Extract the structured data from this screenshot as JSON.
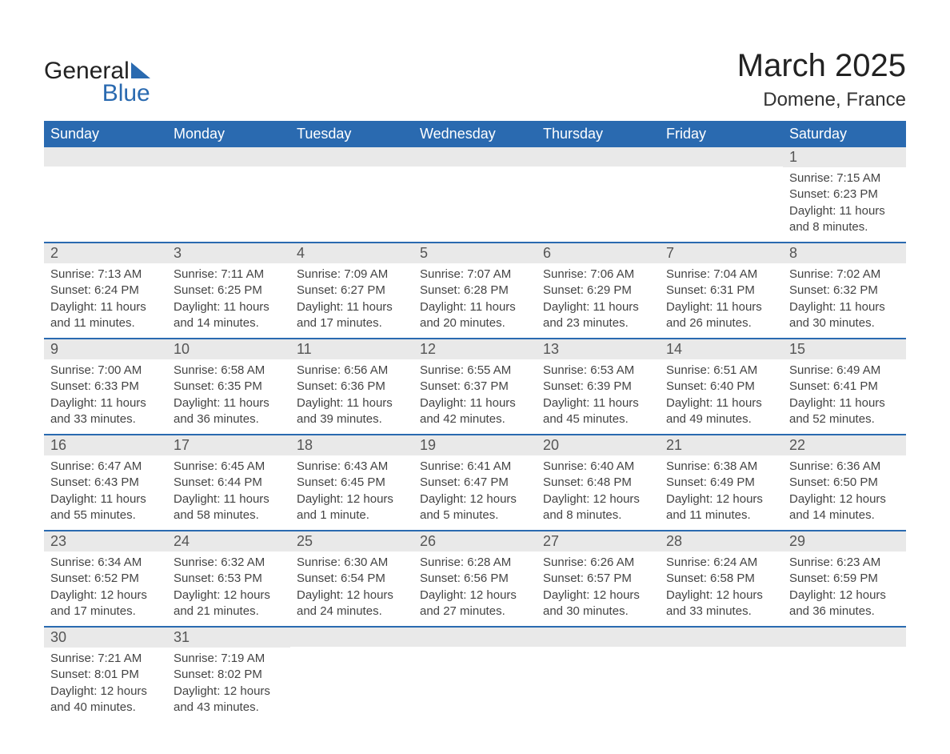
{
  "logo": {
    "general": "General",
    "blue": "Blue"
  },
  "title": "March 2025",
  "subtitle": "Domene, France",
  "colors": {
    "header_bg": "#2a6ab0",
    "header_text": "#ffffff",
    "daynum_bg": "#e9e9e9",
    "row_border": "#2a6ab0",
    "body_text": "#444444",
    "page_bg": "#ffffff"
  },
  "weekdays": [
    "Sunday",
    "Monday",
    "Tuesday",
    "Wednesday",
    "Thursday",
    "Friday",
    "Saturday"
  ],
  "weeks": [
    [
      {
        "day": "",
        "sunrise": "",
        "sunset": "",
        "daylight": ""
      },
      {
        "day": "",
        "sunrise": "",
        "sunset": "",
        "daylight": ""
      },
      {
        "day": "",
        "sunrise": "",
        "sunset": "",
        "daylight": ""
      },
      {
        "day": "",
        "sunrise": "",
        "sunset": "",
        "daylight": ""
      },
      {
        "day": "",
        "sunrise": "",
        "sunset": "",
        "daylight": ""
      },
      {
        "day": "",
        "sunrise": "",
        "sunset": "",
        "daylight": ""
      },
      {
        "day": "1",
        "sunrise": "Sunrise: 7:15 AM",
        "sunset": "Sunset: 6:23 PM",
        "daylight": "Daylight: 11 hours and 8 minutes."
      }
    ],
    [
      {
        "day": "2",
        "sunrise": "Sunrise: 7:13 AM",
        "sunset": "Sunset: 6:24 PM",
        "daylight": "Daylight: 11 hours and 11 minutes."
      },
      {
        "day": "3",
        "sunrise": "Sunrise: 7:11 AM",
        "sunset": "Sunset: 6:25 PM",
        "daylight": "Daylight: 11 hours and 14 minutes."
      },
      {
        "day": "4",
        "sunrise": "Sunrise: 7:09 AM",
        "sunset": "Sunset: 6:27 PM",
        "daylight": "Daylight: 11 hours and 17 minutes."
      },
      {
        "day": "5",
        "sunrise": "Sunrise: 7:07 AM",
        "sunset": "Sunset: 6:28 PM",
        "daylight": "Daylight: 11 hours and 20 minutes."
      },
      {
        "day": "6",
        "sunrise": "Sunrise: 7:06 AM",
        "sunset": "Sunset: 6:29 PM",
        "daylight": "Daylight: 11 hours and 23 minutes."
      },
      {
        "day": "7",
        "sunrise": "Sunrise: 7:04 AM",
        "sunset": "Sunset: 6:31 PM",
        "daylight": "Daylight: 11 hours and 26 minutes."
      },
      {
        "day": "8",
        "sunrise": "Sunrise: 7:02 AM",
        "sunset": "Sunset: 6:32 PM",
        "daylight": "Daylight: 11 hours and 30 minutes."
      }
    ],
    [
      {
        "day": "9",
        "sunrise": "Sunrise: 7:00 AM",
        "sunset": "Sunset: 6:33 PM",
        "daylight": "Daylight: 11 hours and 33 minutes."
      },
      {
        "day": "10",
        "sunrise": "Sunrise: 6:58 AM",
        "sunset": "Sunset: 6:35 PM",
        "daylight": "Daylight: 11 hours and 36 minutes."
      },
      {
        "day": "11",
        "sunrise": "Sunrise: 6:56 AM",
        "sunset": "Sunset: 6:36 PM",
        "daylight": "Daylight: 11 hours and 39 minutes."
      },
      {
        "day": "12",
        "sunrise": "Sunrise: 6:55 AM",
        "sunset": "Sunset: 6:37 PM",
        "daylight": "Daylight: 11 hours and 42 minutes."
      },
      {
        "day": "13",
        "sunrise": "Sunrise: 6:53 AM",
        "sunset": "Sunset: 6:39 PM",
        "daylight": "Daylight: 11 hours and 45 minutes."
      },
      {
        "day": "14",
        "sunrise": "Sunrise: 6:51 AM",
        "sunset": "Sunset: 6:40 PM",
        "daylight": "Daylight: 11 hours and 49 minutes."
      },
      {
        "day": "15",
        "sunrise": "Sunrise: 6:49 AM",
        "sunset": "Sunset: 6:41 PM",
        "daylight": "Daylight: 11 hours and 52 minutes."
      }
    ],
    [
      {
        "day": "16",
        "sunrise": "Sunrise: 6:47 AM",
        "sunset": "Sunset: 6:43 PM",
        "daylight": "Daylight: 11 hours and 55 minutes."
      },
      {
        "day": "17",
        "sunrise": "Sunrise: 6:45 AM",
        "sunset": "Sunset: 6:44 PM",
        "daylight": "Daylight: 11 hours and 58 minutes."
      },
      {
        "day": "18",
        "sunrise": "Sunrise: 6:43 AM",
        "sunset": "Sunset: 6:45 PM",
        "daylight": "Daylight: 12 hours and 1 minute."
      },
      {
        "day": "19",
        "sunrise": "Sunrise: 6:41 AM",
        "sunset": "Sunset: 6:47 PM",
        "daylight": "Daylight: 12 hours and 5 minutes."
      },
      {
        "day": "20",
        "sunrise": "Sunrise: 6:40 AM",
        "sunset": "Sunset: 6:48 PM",
        "daylight": "Daylight: 12 hours and 8 minutes."
      },
      {
        "day": "21",
        "sunrise": "Sunrise: 6:38 AM",
        "sunset": "Sunset: 6:49 PM",
        "daylight": "Daylight: 12 hours and 11 minutes."
      },
      {
        "day": "22",
        "sunrise": "Sunrise: 6:36 AM",
        "sunset": "Sunset: 6:50 PM",
        "daylight": "Daylight: 12 hours and 14 minutes."
      }
    ],
    [
      {
        "day": "23",
        "sunrise": "Sunrise: 6:34 AM",
        "sunset": "Sunset: 6:52 PM",
        "daylight": "Daylight: 12 hours and 17 minutes."
      },
      {
        "day": "24",
        "sunrise": "Sunrise: 6:32 AM",
        "sunset": "Sunset: 6:53 PM",
        "daylight": "Daylight: 12 hours and 21 minutes."
      },
      {
        "day": "25",
        "sunrise": "Sunrise: 6:30 AM",
        "sunset": "Sunset: 6:54 PM",
        "daylight": "Daylight: 12 hours and 24 minutes."
      },
      {
        "day": "26",
        "sunrise": "Sunrise: 6:28 AM",
        "sunset": "Sunset: 6:56 PM",
        "daylight": "Daylight: 12 hours and 27 minutes."
      },
      {
        "day": "27",
        "sunrise": "Sunrise: 6:26 AM",
        "sunset": "Sunset: 6:57 PM",
        "daylight": "Daylight: 12 hours and 30 minutes."
      },
      {
        "day": "28",
        "sunrise": "Sunrise: 6:24 AM",
        "sunset": "Sunset: 6:58 PM",
        "daylight": "Daylight: 12 hours and 33 minutes."
      },
      {
        "day": "29",
        "sunrise": "Sunrise: 6:23 AM",
        "sunset": "Sunset: 6:59 PM",
        "daylight": "Daylight: 12 hours and 36 minutes."
      }
    ],
    [
      {
        "day": "30",
        "sunrise": "Sunrise: 7:21 AM",
        "sunset": "Sunset: 8:01 PM",
        "daylight": "Daylight: 12 hours and 40 minutes."
      },
      {
        "day": "31",
        "sunrise": "Sunrise: 7:19 AM",
        "sunset": "Sunset: 8:02 PM",
        "daylight": "Daylight: 12 hours and 43 minutes."
      },
      {
        "day": "",
        "sunrise": "",
        "sunset": "",
        "daylight": ""
      },
      {
        "day": "",
        "sunrise": "",
        "sunset": "",
        "daylight": ""
      },
      {
        "day": "",
        "sunrise": "",
        "sunset": "",
        "daylight": ""
      },
      {
        "day": "",
        "sunrise": "",
        "sunset": "",
        "daylight": ""
      },
      {
        "day": "",
        "sunrise": "",
        "sunset": "",
        "daylight": ""
      }
    ]
  ]
}
